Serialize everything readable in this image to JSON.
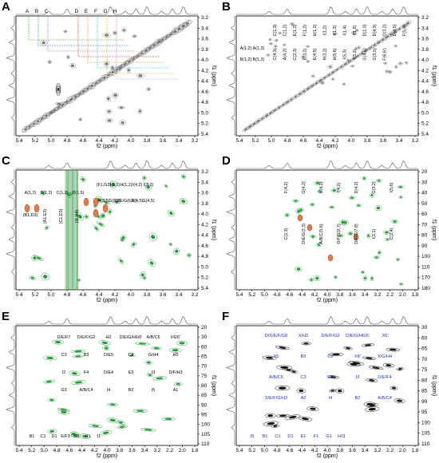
{
  "figure": {
    "panels": [
      {
        "letter": "A",
        "x_label": "f2 (ppm)",
        "y_label": "f1 (ppm)",
        "x_ticks": [
          "5.4",
          "5.2",
          "5.0",
          "4.8",
          "4.6",
          "4.4",
          "4.2",
          "4.0",
          "3.8",
          "3.6",
          "3.4",
          "3.2"
        ],
        "y_ticks": [
          "3.2",
          "3.4",
          "3.6",
          "3.8",
          "4.0",
          "4.2",
          "4.4",
          "4.6",
          "4.8",
          "5.0",
          "5.2",
          "5.4"
        ],
        "top_labels": [
          "A",
          "B",
          "C",
          "D",
          "E",
          "F",
          "G",
          "H"
        ],
        "peak_labels": [],
        "highlight_labels": [],
        "style": "gray"
      },
      {
        "letter": "B",
        "x_label": "f2 (ppm)",
        "y_label": "f1 (ppm)",
        "x_ticks": [
          "5.4",
          "5.2",
          "5.0",
          "4.8",
          "4.6",
          "4.4",
          "4.2",
          "4.0",
          "3.8",
          "3.6",
          "3.4",
          "3.2"
        ],
        "y_ticks": [
          "3.2",
          "3.4",
          "3.6",
          "3.8",
          "4.0",
          "4.2",
          "4.4",
          "4.6",
          "4.8",
          "5.0",
          "5.2",
          "5.4"
        ],
        "top_labels": [],
        "peak_labels": [
          "A(1,2)",
          "A(1,3)",
          "B(1,2)",
          "B(1,3)",
          "C(1,3)",
          "C(1,2)",
          "E(1,2)",
          "F(1,2)",
          "H(1,2)",
          "I(1,2)",
          "I(1,3)",
          "I(1,4)",
          "I(1,5)",
          "D(2,3)",
          "D(4,3)",
          "G(3,2)",
          "D(4,5)",
          "F(5,6)",
          "C(4,3)",
          "A(4,2)",
          "C(2,3)",
          "E(3,2)",
          "E(4,5)",
          "H(3,2)",
          "H(5,6)",
          "I(5,3)",
          "I(3,2)",
          "G(4,5)",
          "G(3,5)",
          "F(6,6')"
        ],
        "highlight_labels": [],
        "style": "gray"
      },
      {
        "letter": "C",
        "x_label": "f2 (ppm)",
        "y_label": "f1 (ppm)",
        "x_ticks": [
          "5.4",
          "5.2",
          "5.0",
          "4.8",
          "4.6",
          "4.4",
          "4.2",
          "4.0",
          "3.8",
          "3.6",
          "3.4",
          "3.2"
        ],
        "y_ticks": [
          "3.2",
          "3.4",
          "3.6",
          "3.8",
          "4.0",
          "4.2",
          "4.4",
          "4.6",
          "4.8",
          "5.0",
          "5.2",
          "5.4"
        ],
        "top_labels": [],
        "peak_labels": [
          "A(1,2)",
          "B(1,2)",
          "C(1,2)",
          "D(1,5)",
          "(B1,D3)",
          "(A1,E3)",
          "(C1,D3)",
          "(I1,H4)",
          "(F1,G3)",
          "I(1,2)",
          "H(1,2)",
          "I(4,2)",
          "I(3,2)",
          "H(3,5)",
          "G(5,6)",
          "D/E/G(6,6')",
          "E(4,5)",
          "G(4,5)"
        ],
        "highlight_labels": [],
        "style": "green"
      },
      {
        "letter": "D",
        "x_label": "f2 (ppm)",
        "y_label": "f1 (ppm)",
        "x_ticks": [
          "5.4",
          "5.2",
          "5.0",
          "4.8",
          "4.6",
          "4.4",
          "4.2",
          "4.0",
          "3.8",
          "3.6",
          "3.4",
          "3.2",
          "2.2",
          "2.0",
          "1.8"
        ],
        "y_ticks": [
          "20",
          "30",
          "40",
          "50",
          "60",
          "70",
          "80",
          "90",
          "100",
          "110",
          "170",
          "180"
        ],
        "top_labels": [],
        "peak_labels": [
          "F(4,2)",
          "G(4,2)",
          "H(4,2)",
          "I(4,2)",
          "D(4,2)",
          "G(3,2)",
          "I(5,6)",
          "C(2,3)",
          "D/E/G(2,3)",
          "A/B/C(5,6)",
          "D/F/G(2,7)",
          "D/F/G(7,8)",
          "I(2,1)",
          "C(2,4)"
        ],
        "highlight_labels": [],
        "style": "green"
      },
      {
        "letter": "E",
        "x_label": "f2 (ppm)",
        "y_label": "f1 (ppm)",
        "x_ticks": [
          "5.4",
          "5.2",
          "5.0",
          "4.8",
          "4.6",
          "4.4",
          "4.2",
          "4.0",
          "3.8",
          "3.6",
          "3.4",
          "3.2",
          "2.2",
          "2.0",
          "1.8"
        ],
        "y_ticks": [
          "20",
          "30",
          "60",
          "65",
          "70",
          "75",
          "80",
          "85",
          "90",
          "95",
          "100",
          "105",
          "110"
        ],
        "top_labels": [],
        "peak_labels": [
          "D/E/F7",
          "D/E/F/G2",
          "H2",
          "D/E/G/H6/6'",
          "A/B/C5",
          "F6/6'",
          "C3",
          "B3",
          "D/E5",
          "C2",
          "G/H4",
          "H5",
          "I2",
          "F4",
          "D/E4",
          "E3",
          "I3",
          "D/F/H3",
          "G3",
          "A/B/C4",
          "I4",
          "B2",
          "I5",
          "A1",
          "B1",
          "C1",
          "D1",
          "E/F1",
          "G1",
          "H1",
          "I1"
        ],
        "highlight_labels": [],
        "style": "green"
      },
      {
        "letter": "F",
        "x_label": "f2 (ppm)",
        "y_label": "f1 (ppm)",
        "x_ticks": [
          "5.4",
          "5.2",
          "5.0",
          "4.8",
          "4.6",
          "4.4",
          "4.2",
          "4.0",
          "3.8",
          "3.6",
          "3.4",
          "3.2",
          "2.2",
          "2.0",
          "1.8"
        ],
        "y_ticks": [
          "30",
          "60",
          "65",
          "70",
          "75",
          "80",
          "85",
          "90",
          "95",
          "100",
          "105",
          "110"
        ],
        "top_labels": [],
        "peak_labels": [],
        "highlight_labels": [
          "D/X/E/F/G8",
          "X/H2",
          "D/E/F/G2",
          "D/E/G/H6/6'",
          "X6",
          "X5",
          "B3",
          "C2",
          "X8'",
          "X/G/H4",
          "A/B/C5",
          "C3",
          "H5",
          "I2",
          "D/E/F4",
          "X/E/F/G/H3",
          "A2",
          "I4",
          "B2",
          "A/B/C4",
          "I5",
          "B1",
          "C1",
          "D1",
          "E1",
          "F1",
          "G1",
          "H/I1"
        ],
        "style": "black"
      }
    ]
  }
}
